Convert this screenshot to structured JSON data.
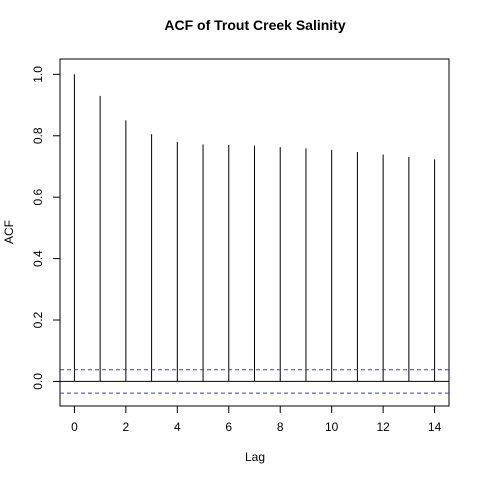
{
  "chart_data": {
    "type": "bar",
    "title": "ACF of Trout Creek Salinity",
    "xlabel": "Lag",
    "ylabel": "ACF",
    "x": [
      0,
      1,
      2,
      3,
      4,
      5,
      6,
      7,
      8,
      9,
      10,
      11,
      12,
      13,
      14
    ],
    "values": [
      1.0,
      0.93,
      0.85,
      0.805,
      0.78,
      0.772,
      0.77,
      0.768,
      0.763,
      0.759,
      0.754,
      0.747,
      0.739,
      0.731,
      0.723
    ],
    "xlim": [
      -0.56,
      14.56
    ],
    "ylim": [
      -0.08,
      1.05
    ],
    "xticks": [
      "0",
      "2",
      "4",
      "6",
      "8",
      "10",
      "12",
      "14"
    ],
    "yticks": [
      "0.0",
      "0.2",
      "0.4",
      "0.6",
      "0.8",
      "1.0"
    ],
    "confidence_bound": 0.038,
    "zero_line": 0,
    "colors": {
      "bars": "#000000",
      "confidence": "#3b3bd6",
      "zero": "#000000"
    },
    "grid": false,
    "legend": "none"
  }
}
